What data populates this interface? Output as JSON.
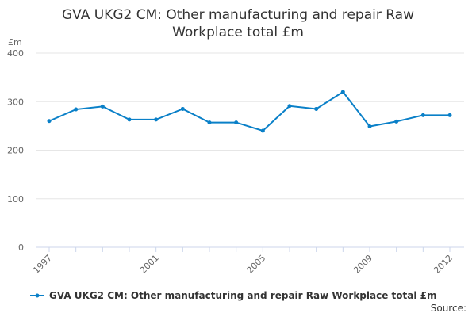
{
  "chart_data": {
    "type": "line",
    "title_line1": "GVA UKG2 CM: Other manufacturing and repair Raw",
    "title_line2": "Workplace total £m",
    "ylabel": "£m",
    "ylim": [
      0,
      400
    ],
    "yticks": [
      "0",
      "100",
      "200",
      "300",
      "400"
    ],
    "xtick_labels": [
      "1997",
      "2001",
      "2005",
      "2009",
      "2012"
    ],
    "x": [
      1997,
      1998,
      1999,
      2000,
      2001,
      2002,
      2003,
      2004,
      2005,
      2006,
      2007,
      2008,
      2009,
      2010,
      2011,
      2012
    ],
    "series": [
      {
        "name": "GVA UKG2 CM: Other manufacturing and repair Raw Workplace total £m",
        "color": "#0a80c8",
        "values": [
          260,
          284,
          290,
          263,
          263,
          285,
          257,
          257,
          240,
          291,
          285,
          320,
          249,
          259,
          272,
          272
        ]
      }
    ],
    "grid": true,
    "legend": "bottom-left"
  },
  "source": "Source:"
}
